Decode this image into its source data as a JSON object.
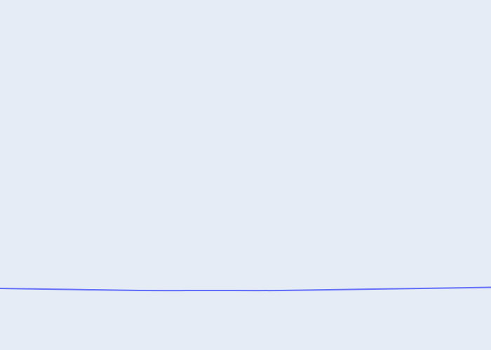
{
  "chart_data": {
    "type": "line",
    "title": "",
    "xlabel": "",
    "ylabel": "",
    "grid": false,
    "legend": "none",
    "ylim": [
      0,
      100
    ],
    "series": [
      {
        "color": "#636efa",
        "x": [
          0,
          1,
          2,
          3,
          4,
          5,
          6,
          7
        ],
        "y": [
          17.6,
          17.3,
          17.0,
          17.0,
          17.0,
          17.3,
          17.6,
          17.9
        ]
      }
    ]
  }
}
